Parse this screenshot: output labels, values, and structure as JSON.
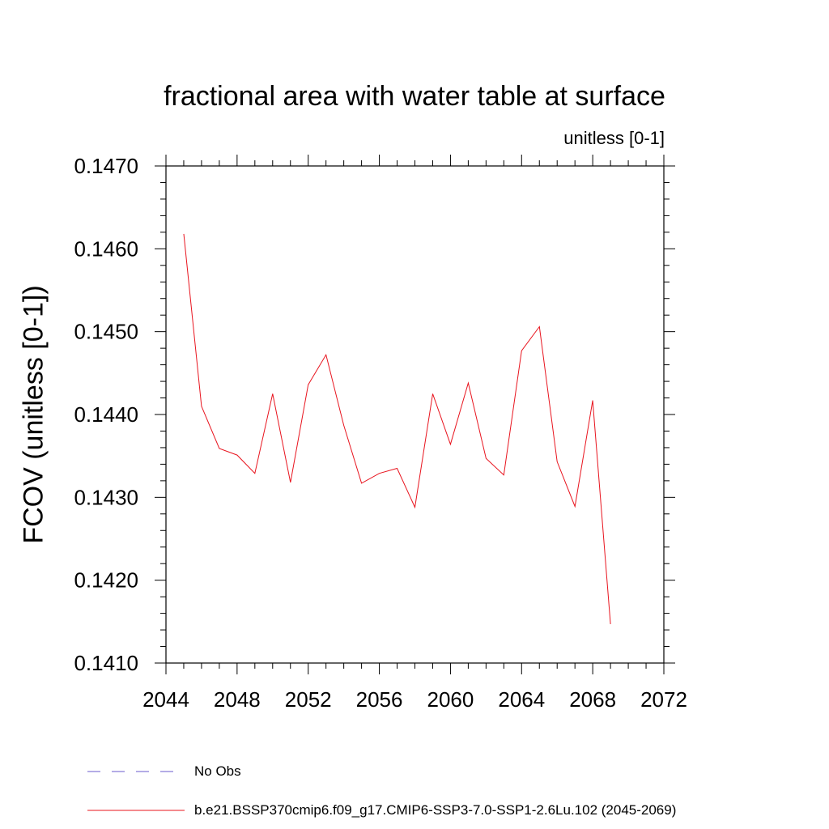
{
  "chart_data": {
    "type": "line",
    "title": "fractional area with water table at surface",
    "units_label": "unitless [0-1]",
    "ylabel": "FCOV  (unitless [0-1])",
    "xlabel": "",
    "xlim": [
      2044,
      2072
    ],
    "ylim": [
      0.141,
      0.147
    ],
    "x_ticks": [
      2044,
      2048,
      2052,
      2056,
      2060,
      2064,
      2068,
      2072
    ],
    "x_tick_labels": [
      "2044",
      "2048",
      "2052",
      "2056",
      "2060",
      "2064",
      "2068",
      "2072"
    ],
    "y_ticks": [
      0.141,
      0.142,
      0.143,
      0.144,
      0.145,
      0.146,
      0.147
    ],
    "y_tick_labels": [
      "0.1410",
      "0.1420",
      "0.1430",
      "0.1440",
      "0.1450",
      "0.1460",
      "0.1470"
    ],
    "grid": false,
    "legend_position": "bottom",
    "series": [
      {
        "name": "b.e21.BSSP370cmip6.f09_g17.CMIP6-SSP3-7.0-SSP1-2.6Lu.102 (2045-2069)",
        "color": "#e8141e",
        "style": "solid",
        "x": [
          2045,
          2046,
          2047,
          2048,
          2049,
          2050,
          2051,
          2052,
          2053,
          2054,
          2055,
          2056,
          2057,
          2058,
          2059,
          2060,
          2061,
          2062,
          2063,
          2064,
          2065,
          2066,
          2067,
          2068,
          2069
        ],
        "values": [
          0.14618,
          0.1441,
          0.14359,
          0.14351,
          0.14329,
          0.14425,
          0.14318,
          0.14436,
          0.14472,
          0.14387,
          0.14317,
          0.14329,
          0.14335,
          0.14288,
          0.14425,
          0.14364,
          0.14438,
          0.14347,
          0.14327,
          0.14477,
          0.14506,
          0.14343,
          0.14289,
          0.14417,
          0.14147
        ]
      },
      {
        "name": "No Obs",
        "color": "#6a5acd",
        "style": "dashed",
        "x": [],
        "values": []
      }
    ]
  }
}
